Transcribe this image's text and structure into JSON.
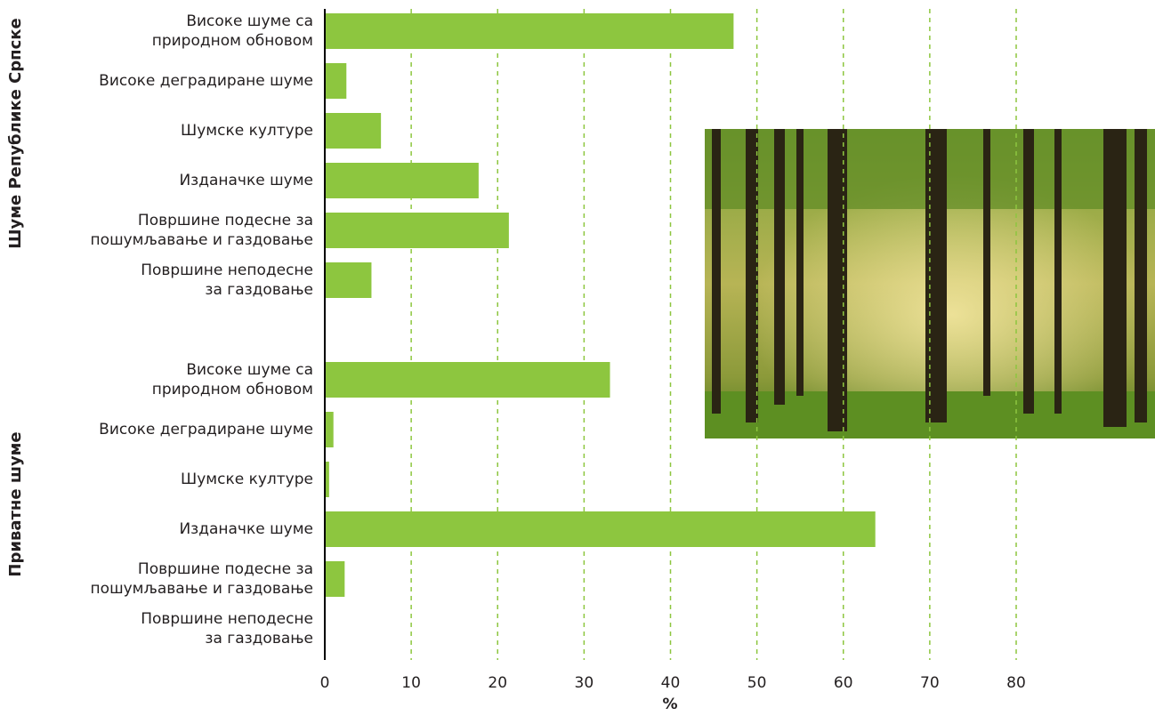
{
  "chart_data": {
    "type": "bar",
    "orientation": "horizontal",
    "color": "#8dc63f",
    "grid": true,
    "xlabel": "%",
    "xlim": [
      0,
      80
    ],
    "xticks": [
      0,
      10,
      20,
      30,
      40,
      50,
      60,
      70,
      80
    ],
    "groups": [
      {
        "name": "Шуме Републике Српске",
        "categories": [
          "Високе шуме са \nприродном обновом",
          "Високе деградиране шуме",
          "Шумске културе",
          "Изданачке шуме",
          "Површине подесне за \nпошумљавање и газдовање",
          "Површине неподесне\nза газдовање"
        ],
        "values": [
          47.3,
          2.5,
          6.5,
          17.8,
          21.3,
          5.4
        ]
      },
      {
        "name": "Приватне шуме",
        "categories": [
          "Високе шуме са\nприродном обновом",
          "Високе деградиране шуме",
          "Шумске културе",
          "Изданачке шуме",
          "Површине подесне за\nпошумљавање и газдовање",
          "Површине неподесне\nза газдовање"
        ],
        "values": [
          33.0,
          1.0,
          0.5,
          63.7,
          2.3,
          0
        ]
      }
    ]
  }
}
